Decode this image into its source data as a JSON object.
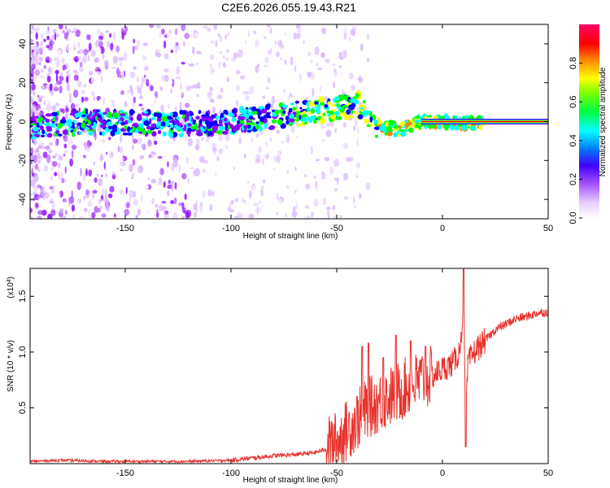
{
  "title": "C2E6.2026.055.19.43.R21",
  "chart_data": [
    {
      "type": "heatmap",
      "xlabel": "Height of straight line (km)",
      "ylabel": "Frequency (Hz)",
      "xlim": [
        -195,
        50
      ],
      "ylim": [
        -50,
        50
      ],
      "xticks": [
        -150,
        -100,
        -50,
        0,
        50
      ],
      "yticks": [
        -40,
        -20,
        0,
        20,
        40
      ],
      "colorbar": {
        "label": "Normalized spectral amplitude",
        "range": [
          0,
          1
        ],
        "ticks": [
          "0.0",
          "0.2",
          "0.4",
          "0.6",
          "0.8"
        ],
        "colors": [
          "#ffffff",
          "#d9b3ff",
          "#8a00ff",
          "#0000ff",
          "#00ffff",
          "#00ff00",
          "#ffff00",
          "#ff8000",
          "#ff0000",
          "#ff0080"
        ]
      },
      "ridge": [
        {
          "x": -195,
          "y": -3
        },
        {
          "x": -170,
          "y": 0
        },
        {
          "x": -130,
          "y": -1
        },
        {
          "x": -110,
          "y": -1
        },
        {
          "x": -90,
          "y": 1
        },
        {
          "x": -70,
          "y": 4
        },
        {
          "x": -50,
          "y": 7
        },
        {
          "x": -40,
          "y": 9
        },
        {
          "x": -30,
          "y": -3
        },
        {
          "x": -20,
          "y": -4
        },
        {
          "x": -10,
          "y": 0
        },
        {
          "x": 0,
          "y": 0
        },
        {
          "x": 10,
          "y": -1
        },
        {
          "x": 20,
          "y": 0
        },
        {
          "x": 50,
          "y": 0
        }
      ]
    },
    {
      "type": "line",
      "xlabel": "Height of straight line (km)",
      "ylabel": "SNR (10 * v/v)",
      "yscale_label": "(x10",
      "yscale_exp": "4",
      "yscale_close": ")",
      "xlim": [
        -195,
        50
      ],
      "ylim": [
        0,
        1.75
      ],
      "xticks": [
        -150,
        -100,
        -50,
        0,
        50
      ],
      "yticks": [
        "0.5",
        "1.0",
        "1.5"
      ],
      "series": [
        {
          "name": "SNR",
          "color": "#e8322c",
          "points": [
            [
              -195,
              0.02
            ],
            [
              -180,
              0.03
            ],
            [
              -160,
              0.02
            ],
            [
              -140,
              0.02
            ],
            [
              -120,
              0.02
            ],
            [
              -100,
              0.03
            ],
            [
              -90,
              0.05
            ],
            [
              -80,
              0.07
            ],
            [
              -70,
              0.08
            ],
            [
              -60,
              0.1
            ],
            [
              -55,
              0.13
            ],
            [
              -50,
              0.2
            ],
            [
              -45,
              0.3
            ],
            [
              -40,
              0.4
            ],
            [
              -35,
              0.5
            ],
            [
              -30,
              0.55
            ],
            [
              -25,
              0.6
            ],
            [
              -20,
              0.65
            ],
            [
              -15,
              0.7
            ],
            [
              -10,
              0.75
            ],
            [
              -5,
              0.78
            ],
            [
              0,
              0.85
            ],
            [
              5,
              0.9
            ],
            [
              8,
              1.0
            ],
            [
              10,
              1.4
            ],
            [
              11,
              0.3
            ],
            [
              12,
              0.9
            ],
            [
              15,
              1.0
            ],
            [
              20,
              1.1
            ],
            [
              25,
              1.2
            ],
            [
              30,
              1.25
            ],
            [
              35,
              1.3
            ],
            [
              40,
              1.32
            ],
            [
              45,
              1.35
            ],
            [
              50,
              1.36
            ]
          ],
          "spikes": [
            {
              "x": -38,
              "y": 1.05
            },
            {
              "x": -35,
              "y": 1.08
            },
            {
              "x": -28,
              "y": 0.95
            },
            {
              "x": -22,
              "y": 1.15
            },
            {
              "x": -15,
              "y": 1.1
            },
            {
              "x": -8,
              "y": 1.05
            },
            {
              "x": 10,
              "y": 1.75
            },
            {
              "x": 11,
              "y": 0.15
            }
          ]
        }
      ]
    }
  ]
}
